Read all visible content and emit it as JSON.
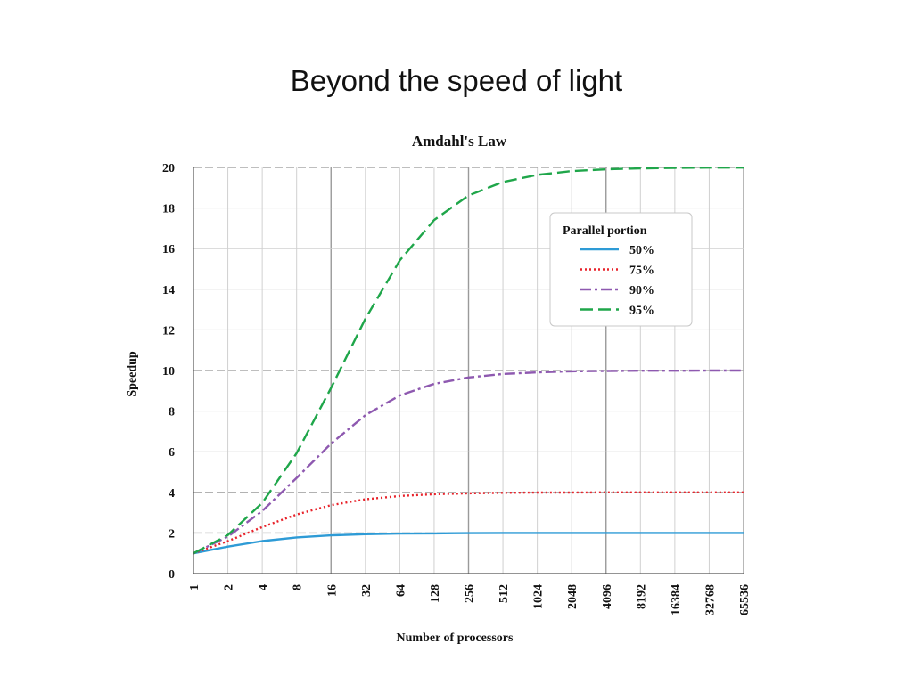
{
  "slide": {
    "title": "Beyond the speed of light"
  },
  "chart_data": {
    "type": "line",
    "title": "Amdahl's Law",
    "xlabel": "Number of processors",
    "ylabel": "Speedup",
    "x_scale": "log2",
    "x": [
      1,
      2,
      4,
      8,
      16,
      32,
      64,
      128,
      256,
      512,
      1024,
      2048,
      4096,
      8192,
      16384,
      32768,
      65536
    ],
    "x_tick_labels": [
      "1",
      "2",
      "4",
      "8",
      "16",
      "32",
      "64",
      "128",
      "256",
      "512",
      "1024",
      "2048",
      "4096",
      "8192",
      "16384",
      "32768",
      "65536"
    ],
    "ylim": [
      0,
      20
    ],
    "y_ticks": [
      0,
      2,
      4,
      6,
      8,
      10,
      12,
      14,
      16,
      18,
      20
    ],
    "grid": true,
    "legend": {
      "title": "Parallel portion",
      "placement": "top-right"
    },
    "series": [
      {
        "name": "50%",
        "color": "#2e9bd6",
        "style": "solid",
        "values": [
          1,
          1.33,
          1.6,
          1.78,
          1.88,
          1.94,
          1.97,
          1.98,
          1.99,
          2.0,
          2.0,
          2.0,
          2.0,
          2.0,
          2.0,
          2.0,
          2.0
        ]
      },
      {
        "name": "75%",
        "color": "#e8232b",
        "style": "dotted",
        "values": [
          1,
          1.6,
          2.29,
          2.91,
          3.37,
          3.66,
          3.82,
          3.91,
          3.95,
          3.98,
          3.99,
          3.99,
          4.0,
          4.0,
          4.0,
          4.0,
          4.0
        ]
      },
      {
        "name": "90%",
        "color": "#8e59b0",
        "style": "dashdot",
        "values": [
          1,
          1.82,
          3.08,
          4.71,
          6.4,
          7.8,
          8.77,
          9.34,
          9.66,
          9.83,
          9.91,
          9.96,
          9.98,
          9.99,
          9.99,
          10.0,
          10.0
        ]
      },
      {
        "name": "95%",
        "color": "#1fa64a",
        "style": "dashed",
        "values": [
          1,
          1.9,
          3.48,
          5.93,
          9.14,
          12.55,
          15.42,
          17.41,
          18.62,
          19.28,
          19.63,
          19.82,
          19.91,
          19.95,
          19.98,
          19.99,
          19.99
        ]
      }
    ]
  }
}
